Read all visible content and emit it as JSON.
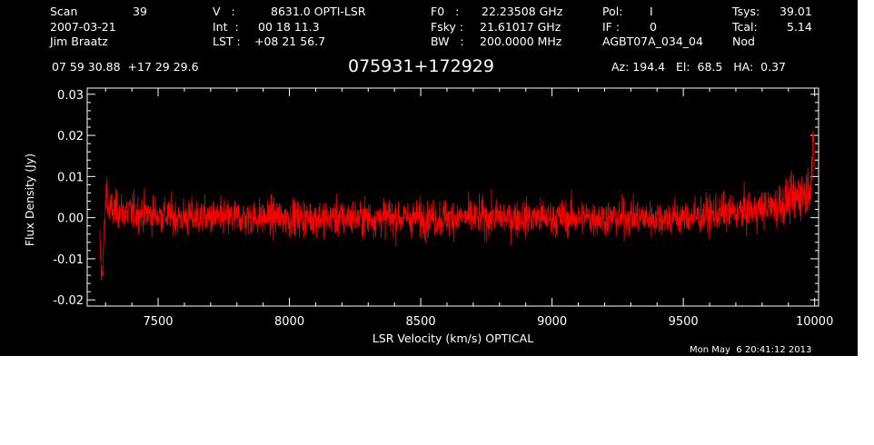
{
  "header": {
    "col1": [
      {
        "label": "Scan",
        "value": "39"
      },
      {
        "label": "2007-03-21",
        "value": ""
      },
      {
        "label": "Jim Braatz",
        "value": ""
      }
    ],
    "col2": [
      {
        "label": "V   :",
        "value": "8631.0 OPTI-LSR"
      },
      {
        "label": "Int  :",
        "value": "00 18 11.3"
      },
      {
        "label": "LST :",
        "value": "+08 21 56.7"
      }
    ],
    "col3": [
      {
        "label": "F0   :",
        "value": "22.23508 GHz"
      },
      {
        "label": "Fsky :",
        "value": "21.61017 GHz"
      },
      {
        "label": "BW   :",
        "value": "200.0000 MHz"
      }
    ],
    "col4": [
      {
        "label": "Pol:",
        "value": "I"
      },
      {
        "label": "IF :",
        "value": "0"
      },
      {
        "label": "AGBT07A_034_04",
        "value": ""
      }
    ],
    "col5": [
      {
        "label": "Tsys:",
        "value": "39.01"
      },
      {
        "label": "Tcal:",
        "value": "5.14"
      },
      {
        "label": "Nod",
        "value": ""
      }
    ],
    "coords": "07 59 30.88  +17 29 29.6",
    "source": "075931+172929",
    "az_el_ha": "Az: 194.4   El:  68.5   HA:  0.37"
  },
  "timestamp": "Mon May  6 20:41:12 2013",
  "chart_data": {
    "type": "line",
    "title": "075931+172929",
    "xlabel": "LSR Velocity (km/s) OPTICAL",
    "ylabel": "Flux Density (Jy)",
    "xlim": [
      7230,
      10015
    ],
    "ylim": [
      -0.0215,
      0.0315
    ],
    "x_ticks": [
      7500,
      8000,
      8500,
      9000,
      9500,
      10000
    ],
    "x_tick_labels": [
      "7500",
      "8000",
      "8500",
      "9000",
      "9500",
      "10000"
    ],
    "y_ticks": [
      -0.02,
      -0.01,
      0.0,
      0.01,
      0.02,
      0.03
    ],
    "y_tick_labels": [
      "-0.02",
      "-0.01",
      "0.00",
      "0.01",
      "0.02",
      "0.03"
    ],
    "series": [
      {
        "color": "#ff0000",
        "x_start": 7278,
        "x_end": 9998,
        "noise_rms": 0.0035,
        "points": [
          [
            7278,
            -0.006
          ],
          [
            7282,
            -0.012
          ],
          [
            7286,
            -0.015
          ],
          [
            7290,
            -0.009
          ],
          [
            7295,
            -0.004
          ],
          [
            7300,
            0.003
          ],
          [
            7305,
            0.008
          ],
          [
            7310,
            0.002
          ],
          [
            7600,
            0.0
          ],
          [
            8000,
            0.0
          ],
          [
            8500,
            0.0
          ],
          [
            9000,
            0.0
          ],
          [
            9500,
            0.0
          ],
          [
            9800,
            0.002
          ],
          [
            9900,
            0.004
          ],
          [
            9960,
            0.006
          ],
          [
            9985,
            0.009
          ],
          [
            9993,
            0.014
          ],
          [
            9997,
            0.02
          ],
          [
            9998,
            0.011
          ]
        ]
      }
    ]
  }
}
